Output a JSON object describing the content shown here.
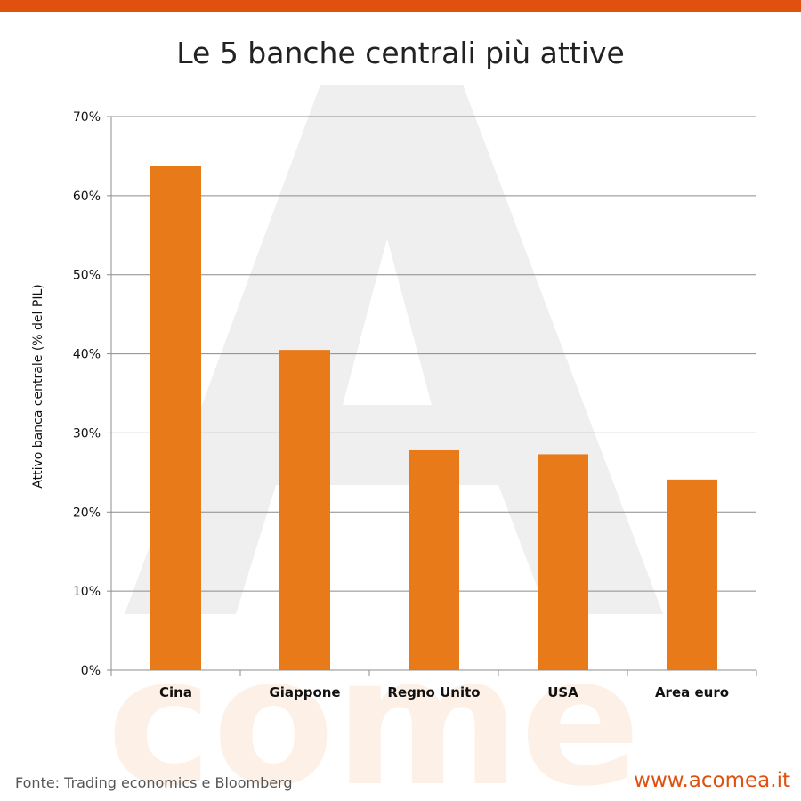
{
  "brand": {
    "accent_color": "#e0500f",
    "bar_color": "#e87a1a",
    "watermark_color": "#efefef",
    "watermark_text": "come"
  },
  "chart_data": {
    "type": "bar",
    "title": "Le 5 banche centrali più attive",
    "ylabel": "Attivo banca centrale (% del PIL)",
    "xlabel": "",
    "categories": [
      "Cina",
      "Giappone",
      "Regno Unito",
      "USA",
      "Area euro"
    ],
    "values": [
      63.8,
      40.5,
      27.8,
      27.3,
      24.1
    ],
    "ylim": [
      0,
      70
    ],
    "yticks": [
      0,
      10,
      20,
      30,
      40,
      50,
      60,
      70
    ],
    "ytick_labels": [
      "0%",
      "10%",
      "20%",
      "30%",
      "40%",
      "50%",
      "60%",
      "70%"
    ],
    "grid": true,
    "legend": "none"
  },
  "footer": {
    "source": "Fonte: Trading economics e Bloomberg",
    "url": "www.acomea.it"
  }
}
